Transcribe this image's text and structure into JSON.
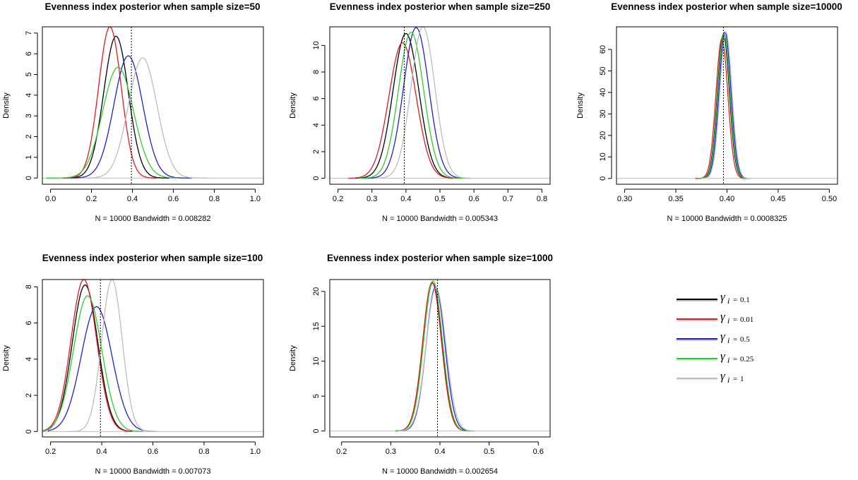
{
  "figure": {
    "background": "#ffffff"
  },
  "legend": {
    "items": [
      {
        "symbol": "γ",
        "subscript": "i",
        "equals": "=",
        "value": "0.1",
        "color": "#000000"
      },
      {
        "symbol": "γ",
        "subscript": "i",
        "equals": "=",
        "value": "0.01",
        "color": "#e41a1c"
      },
      {
        "symbol": "γ",
        "subscript": "i",
        "equals": "=",
        "value": "0.5",
        "color": "#1f1fd6"
      },
      {
        "symbol": "γ",
        "subscript": "i",
        "equals": "=",
        "value": "0.25",
        "color": "#2ecc2e"
      },
      {
        "symbol": "γ",
        "subscript": "i",
        "equals": "=",
        "value": "1",
        "color": "#bdbdbd"
      }
    ]
  },
  "chart_data": [
    {
      "type": "line",
      "title": "Evenness index posterior when sample size=50",
      "xlabel": "N = 10000   Bandwidth = 0.008282",
      "ylabel": "Density",
      "xlim": [
        -0.04,
        1.04
      ],
      "ylim": [
        -0.3,
        7.3
      ],
      "xticks": [
        0.0,
        0.2,
        0.4,
        0.6,
        0.8,
        1.0
      ],
      "xtick_labels": [
        "0.0",
        "0.2",
        "0.4",
        "0.6",
        "0.8",
        "1.0"
      ],
      "yticks": [
        0,
        1,
        2,
        3,
        4,
        5,
        6,
        7
      ],
      "ytick_labels": [
        "0",
        "1",
        "2",
        "3",
        "4",
        "5",
        "6",
        "7"
      ],
      "vline": 0.395,
      "series": [
        {
          "name": "γi = 0.1",
          "color": "#000000",
          "mean": 0.32,
          "sd": 0.06,
          "peak": 6.85,
          "min": 0.06,
          "max": 0.58
        },
        {
          "name": "γi = 0.01",
          "color": "#e41a1c",
          "mean": 0.29,
          "sd": 0.055,
          "peak": 7.3,
          "min": 0.06,
          "max": 0.52
        },
        {
          "name": "γi = 0.5",
          "color": "#1f1fd6",
          "mean": 0.38,
          "sd": 0.07,
          "peak": 5.9,
          "min": 0.1,
          "max": 0.69
        },
        {
          "name": "γi = 0.25",
          "color": "#2ecc2e",
          "mean": 0.33,
          "sd": 0.075,
          "peak": 5.35,
          "min": -0.02,
          "max": 0.62
        },
        {
          "name": "γi = 1",
          "color": "#bdbdbd",
          "mean": 0.45,
          "sd": 0.07,
          "peak": 5.8,
          "min": 0.16,
          "max": 0.77
        }
      ]
    },
    {
      "type": "line",
      "title": "Evenness index posterior when sample size=250",
      "xlabel": "N = 10000   Bandwidth = 0.005343",
      "ylabel": "Density",
      "xlim": [
        0.176,
        0.824
      ],
      "ylim": [
        -0.45,
        11.4
      ],
      "xticks": [
        0.2,
        0.3,
        0.4,
        0.5,
        0.6,
        0.7,
        0.8
      ],
      "xtick_labels": [
        "0.2",
        "0.3",
        "0.4",
        "0.5",
        "0.6",
        "0.7",
        "0.8"
      ],
      "yticks": [
        0,
        2,
        4,
        6,
        8,
        10
      ],
      "ytick_labels": [
        "0",
        "2",
        "4",
        "6",
        "8",
        "10"
      ],
      "vline": 0.395,
      "series": [
        {
          "name": "γi = 0.1",
          "color": "#000000",
          "mean": 0.4,
          "sd": 0.038,
          "peak": 10.9,
          "min": 0.25,
          "max": 0.56
        },
        {
          "name": "γi = 0.01",
          "color": "#e41a1c",
          "mean": 0.39,
          "sd": 0.04,
          "peak": 10.2,
          "min": 0.23,
          "max": 0.55
        },
        {
          "name": "γi = 0.5",
          "color": "#1f1fd6",
          "mean": 0.43,
          "sd": 0.037,
          "peak": 11.35,
          "min": 0.28,
          "max": 0.59
        },
        {
          "name": "γi = 0.25",
          "color": "#2ecc2e",
          "mean": 0.415,
          "sd": 0.037,
          "peak": 11.0,
          "min": 0.26,
          "max": 0.58
        },
        {
          "name": "γi = 1",
          "color": "#bdbdbd",
          "mean": 0.45,
          "sd": 0.035,
          "peak": 11.4,
          "min": 0.31,
          "max": 0.6
        }
      ]
    },
    {
      "type": "line",
      "title": "Evenness index posterior when sample size=10000",
      "xlabel": "N = 10000   Bandwidth = 0.0008325",
      "ylabel": "Density",
      "xlim": [
        0.292,
        0.508
      ],
      "ylim": [
        -2.7,
        70.5
      ],
      "xticks": [
        0.3,
        0.35,
        0.4,
        0.45,
        0.5
      ],
      "xtick_labels": [
        "0.30",
        "0.35",
        "0.40",
        "0.45",
        "0.50"
      ],
      "yticks": [
        0,
        10,
        20,
        30,
        40,
        50,
        60
      ],
      "ytick_labels": [
        "0",
        "10",
        "20",
        "30",
        "40",
        "50",
        "60"
      ],
      "vline": 0.3965,
      "series": [
        {
          "name": "γi = 0.1",
          "color": "#000000",
          "mean": 0.3965,
          "sd": 0.0058,
          "peak": 67.0,
          "min": 0.372,
          "max": 0.421
        },
        {
          "name": "γi = 0.01",
          "color": "#e41a1c",
          "mean": 0.395,
          "sd": 0.0058,
          "peak": 65.0,
          "min": 0.369,
          "max": 0.419
        },
        {
          "name": "γi = 0.5",
          "color": "#1f1fd6",
          "mean": 0.398,
          "sd": 0.0058,
          "peak": 68.0,
          "min": 0.373,
          "max": 0.423
        },
        {
          "name": "γi = 0.25",
          "color": "#2ecc2e",
          "mean": 0.397,
          "sd": 0.0058,
          "peak": 67.5,
          "min": 0.372,
          "max": 0.422
        },
        {
          "name": "γi = 1",
          "color": "#bdbdbd",
          "mean": 0.399,
          "sd": 0.0058,
          "peak": 68.0,
          "min": 0.375,
          "max": 0.423
        }
      ]
    },
    {
      "type": "line",
      "title": "Evenness index posterior when sample size=100",
      "xlabel": "N = 10000   Bandwidth = 0.007073",
      "ylabel": "Density",
      "xlim": [
        0.168,
        1.032
      ],
      "ylim": [
        -0.3,
        8.4
      ],
      "xticks": [
        0.2,
        0.4,
        0.6,
        0.8,
        1.0
      ],
      "xtick_labels": [
        "0.2",
        "0.4",
        "0.6",
        "0.8",
        "1.0"
      ],
      "yticks": [
        0,
        2,
        4,
        6,
        8
      ],
      "ytick_labels": [
        "0",
        "2",
        "4",
        "6",
        "8"
      ],
      "vline": 0.395,
      "series": [
        {
          "name": "γi = 0.1",
          "color": "#000000",
          "mean": 0.335,
          "sd": 0.05,
          "peak": 8.1,
          "min": 0.17,
          "max": 0.52
        },
        {
          "name": "γi = 0.01",
          "color": "#e41a1c",
          "mean": 0.33,
          "sd": 0.05,
          "peak": 8.4,
          "min": 0.17,
          "max": 0.52
        },
        {
          "name": "γi = 0.5",
          "color": "#1f1fd6",
          "mean": 0.38,
          "sd": 0.06,
          "peak": 6.9,
          "min": 0.19,
          "max": 0.61
        },
        {
          "name": "γi = 0.25",
          "color": "#2ecc2e",
          "mean": 0.345,
          "sd": 0.055,
          "peak": 7.5,
          "min": 0.17,
          "max": 0.56
        },
        {
          "name": "γi = 1",
          "color": "#bdbdbd",
          "mean": 0.44,
          "sd": 0.04,
          "peak": 8.4,
          "min": 0.27,
          "max": 0.62
        }
      ]
    },
    {
      "type": "line",
      "title": "Evenness index posterior when sample size=1000",
      "xlabel": "N = 10000   Bandwidth = 0.002654",
      "ylabel": "Density",
      "xlim": [
        0.176,
        0.624
      ],
      "ylim": [
        -0.85,
        21.7
      ],
      "xticks": [
        0.2,
        0.3,
        0.4,
        0.5,
        0.6
      ],
      "xtick_labels": [
        "0.2",
        "0.3",
        "0.4",
        "0.5",
        "0.6"
      ],
      "yticks": [
        0,
        5,
        10,
        15,
        20
      ],
      "ytick_labels": [
        "0",
        "5",
        "10",
        "15",
        "20"
      ],
      "vline": 0.395,
      "series": [
        {
          "name": "γi = 0.1",
          "color": "#000000",
          "mean": 0.385,
          "sd": 0.019,
          "peak": 21.2,
          "min": 0.31,
          "max": 0.46
        },
        {
          "name": "γi = 0.01",
          "color": "#e41a1c",
          "mean": 0.384,
          "sd": 0.019,
          "peak": 21.3,
          "min": 0.31,
          "max": 0.46
        },
        {
          "name": "γi = 0.5",
          "color": "#1f1fd6",
          "mean": 0.391,
          "sd": 0.019,
          "peak": 20.6,
          "min": 0.315,
          "max": 0.47
        },
        {
          "name": "γi = 0.25",
          "color": "#2ecc2e",
          "mean": 0.386,
          "sd": 0.019,
          "peak": 21.5,
          "min": 0.31,
          "max": 0.465
        },
        {
          "name": "γi = 1",
          "color": "#bdbdbd",
          "mean": 0.392,
          "sd": 0.02,
          "peak": 20.5,
          "min": 0.315,
          "max": 0.47
        }
      ]
    }
  ]
}
